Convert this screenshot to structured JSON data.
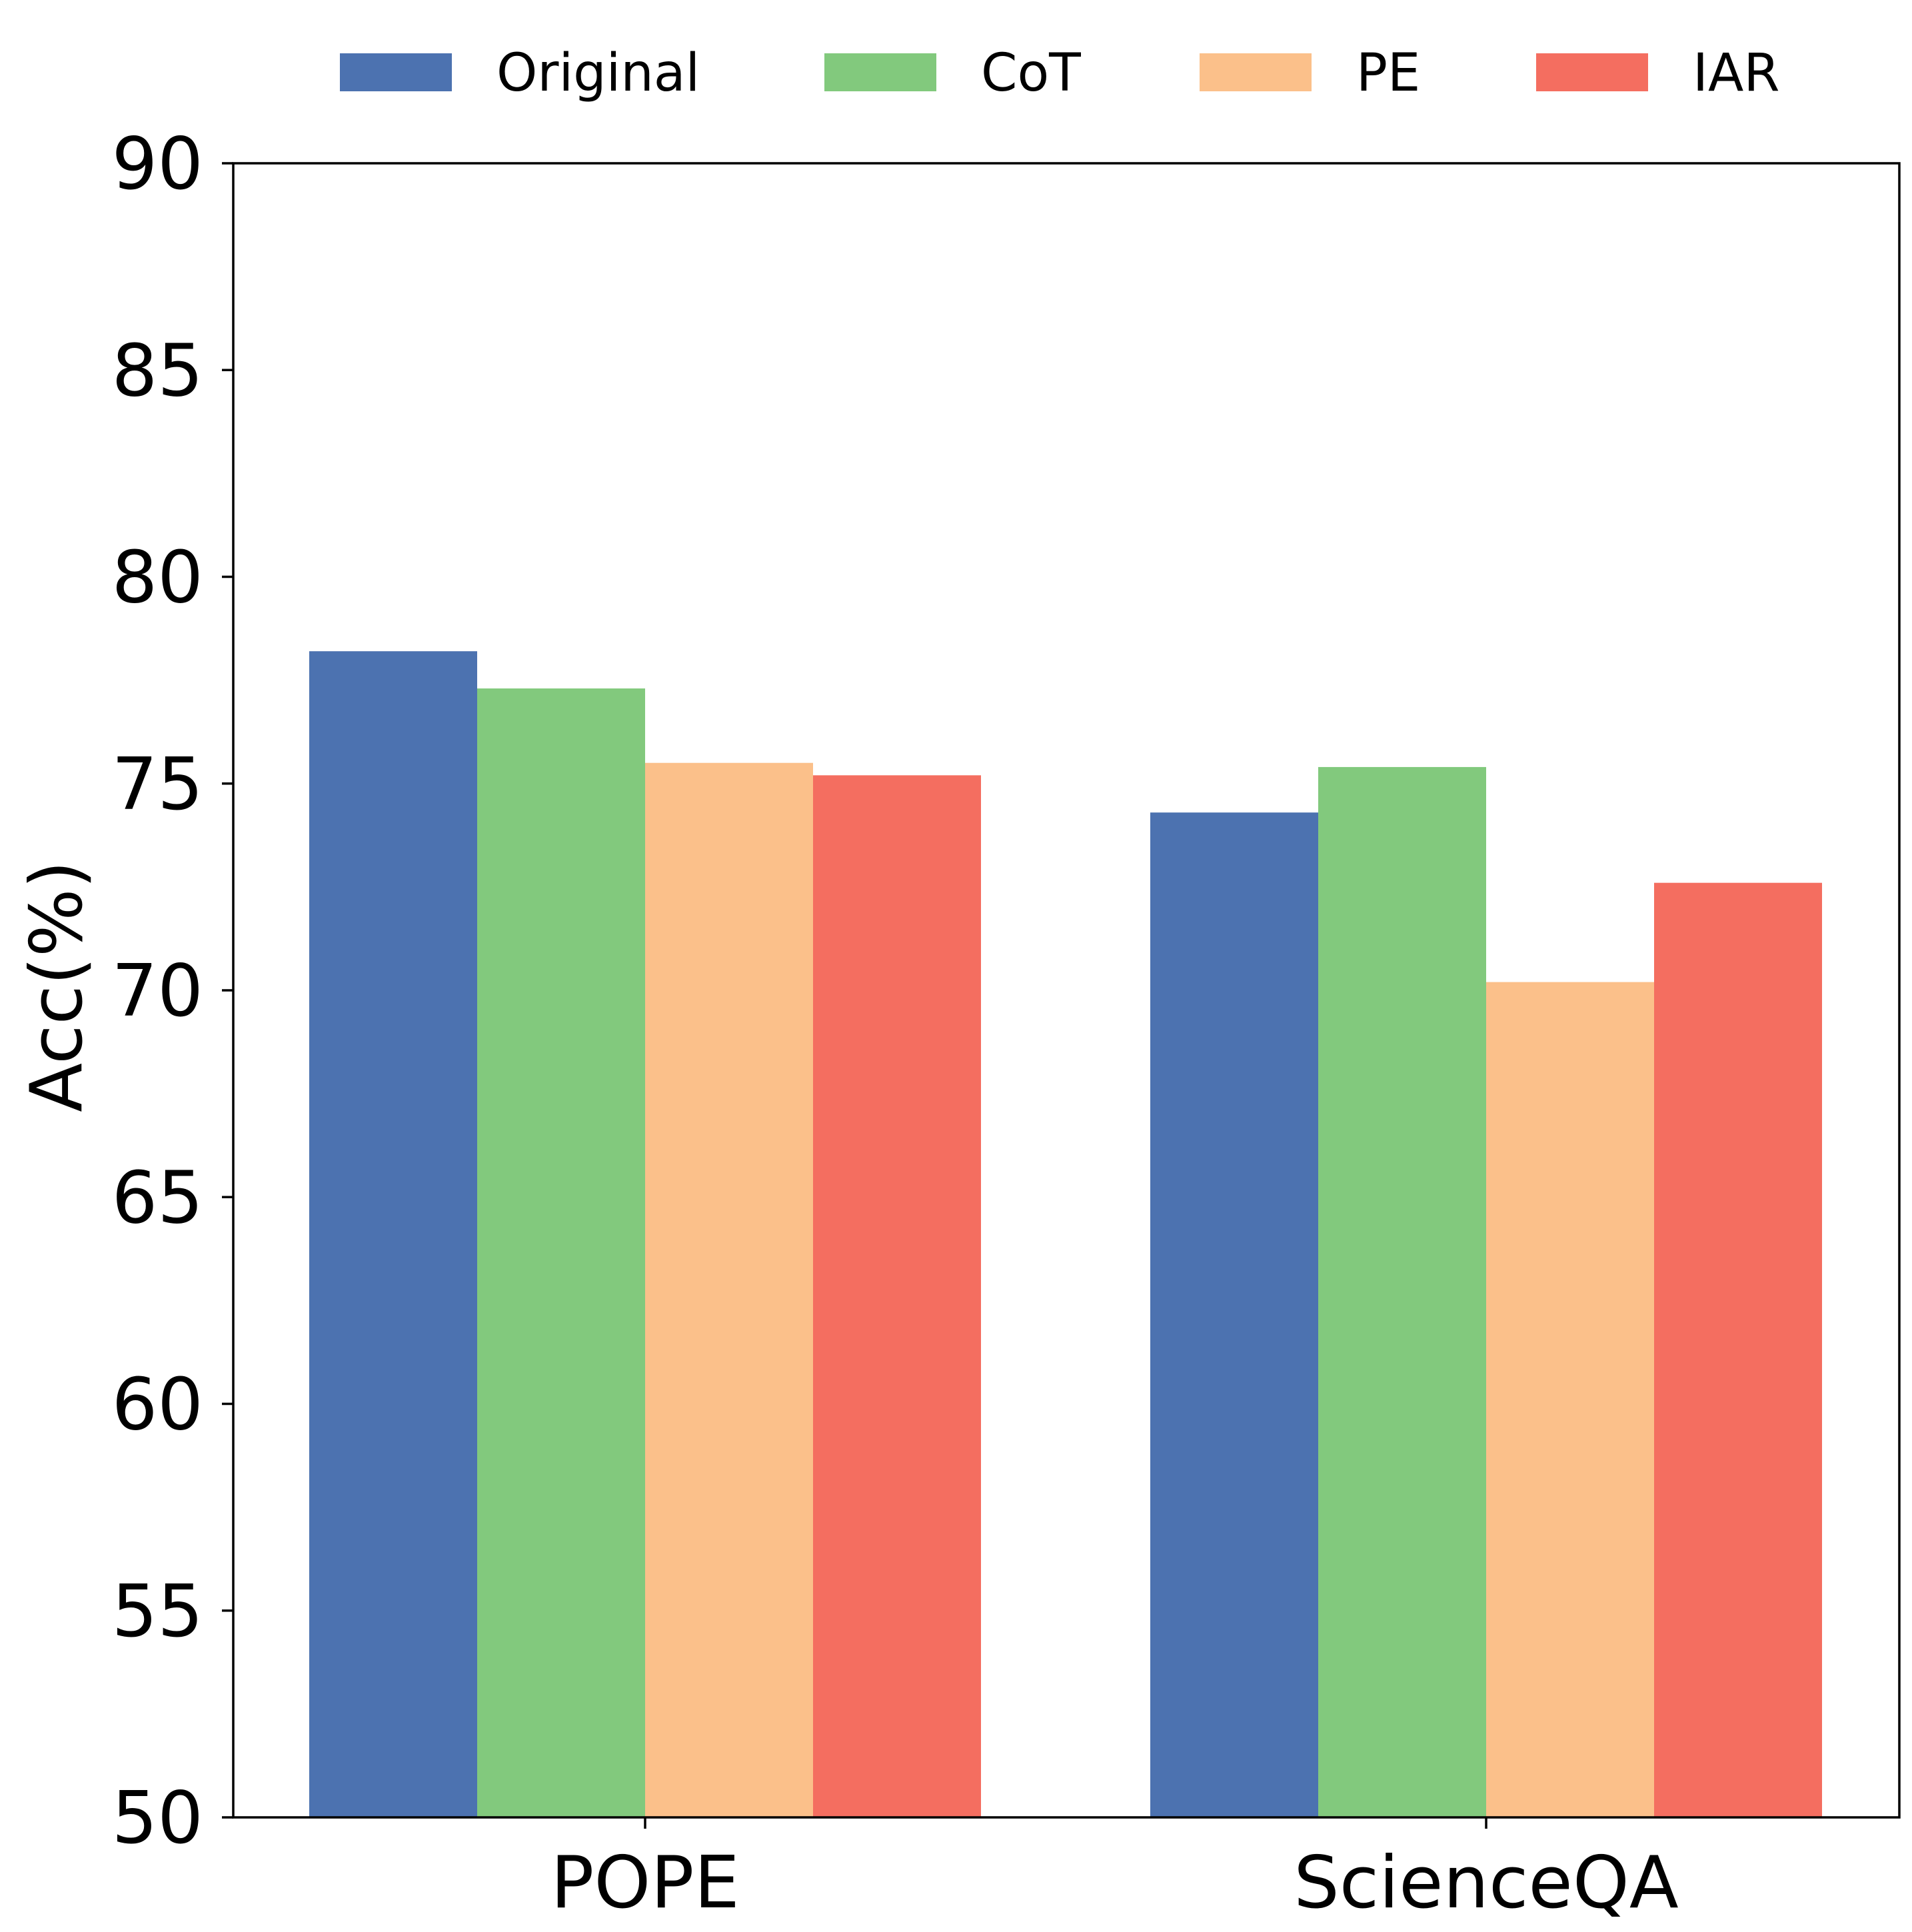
{
  "chart_data": {
    "type": "bar",
    "title": "",
    "xlabel": "",
    "ylabel": "Acc(%)",
    "ylim": [
      50,
      90
    ],
    "yticks": [
      50,
      55,
      60,
      65,
      70,
      75,
      80,
      85,
      90
    ],
    "ytick_labels": [
      "50",
      "55",
      "60",
      "65",
      "70",
      "75",
      "80",
      "85",
      "90"
    ],
    "categories": [
      "POPE",
      "ScienceQA"
    ],
    "series": [
      {
        "name": "Original",
        "color": "#4c72b0",
        "values": [
          78.2,
          74.3
        ]
      },
      {
        "name": "CoT",
        "color": "#82c97d",
        "values": [
          77.3,
          75.4
        ]
      },
      {
        "name": "PE",
        "color": "#fbc08a",
        "values": [
          75.5,
          70.2
        ]
      },
      {
        "name": "IAR",
        "color": "#f46e60",
        "values": [
          75.2,
          72.6
        ]
      }
    ],
    "legend_position": "top-center",
    "grid": false
  }
}
